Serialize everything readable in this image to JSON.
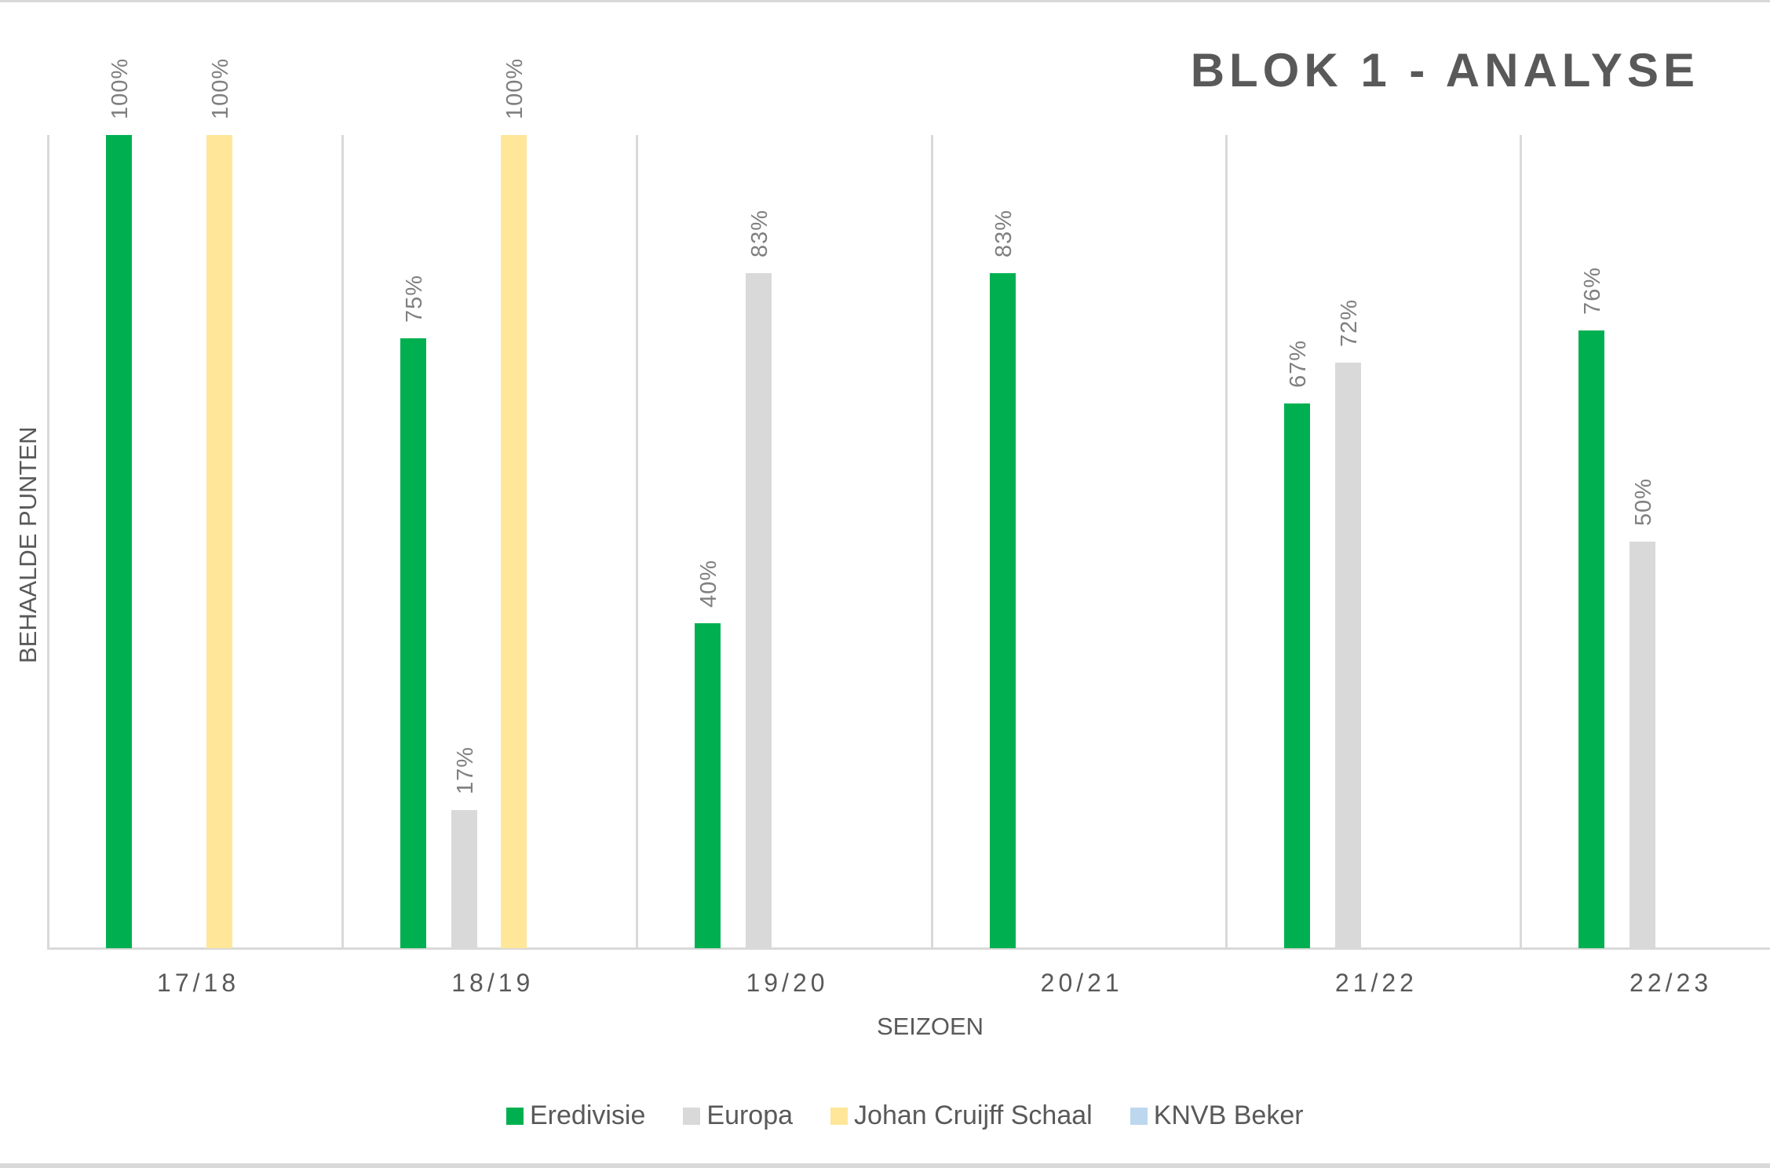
{
  "chart_data": {
    "type": "bar",
    "title": "BLOK 1 - ANALYSE",
    "xlabel": "SEIZOEN",
    "ylabel": "BEHAALDE PUNTEN",
    "categories": [
      "17/18",
      "18/19",
      "19/20",
      "20/21",
      "21/22",
      "22/23"
    ],
    "series": [
      {
        "name": "Eredivisie",
        "color": "#00b050",
        "values": [
          100,
          75,
          40,
          83,
          67,
          76
        ]
      },
      {
        "name": "Europa",
        "color": "#d9d9d9",
        "values": [
          null,
          17,
          83,
          null,
          72,
          50
        ]
      },
      {
        "name": "Johan Cruijff Schaal",
        "color": "#ffe699",
        "values": [
          100,
          100,
          null,
          null,
          null,
          null
        ]
      },
      {
        "name": "KNVB Beker",
        "color": "#bdd7ee",
        "values": [
          null,
          null,
          null,
          null,
          null,
          null
        ]
      }
    ],
    "value_format": "{v}%",
    "ylim": [
      0,
      100
    ],
    "grid": "vertical category separators",
    "legend_position": "bottom"
  }
}
